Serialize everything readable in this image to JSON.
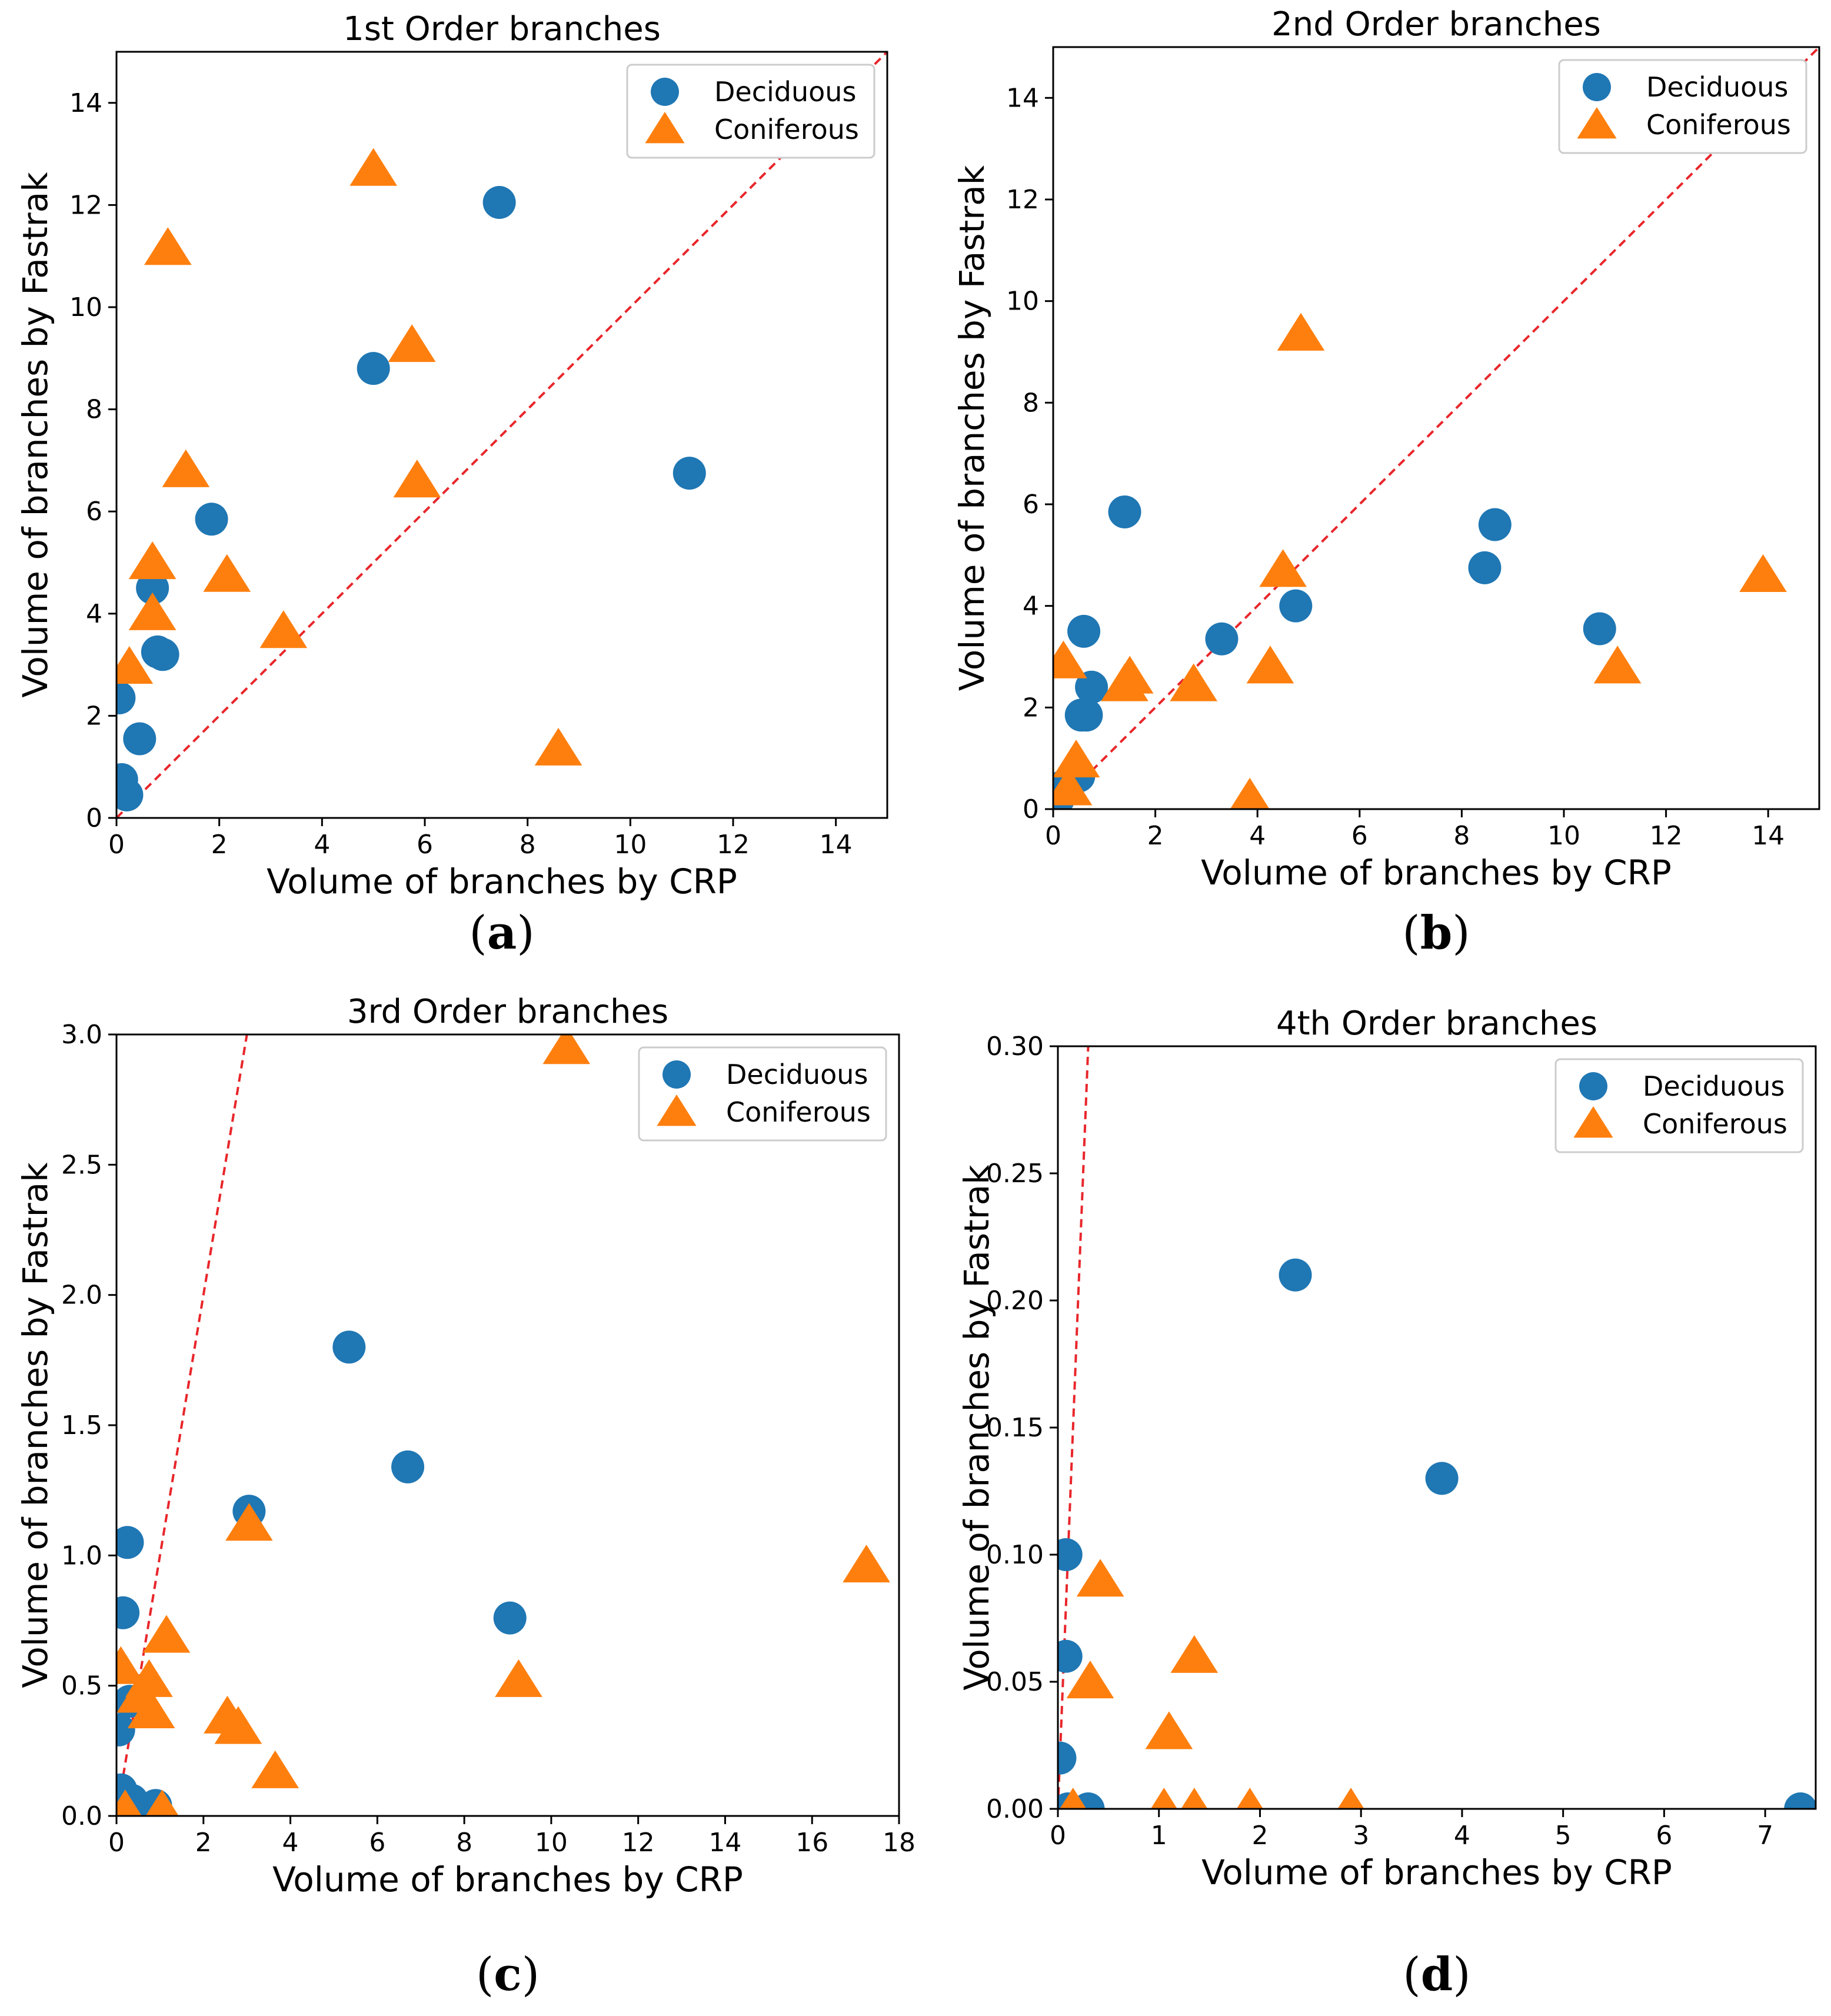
{
  "chart_data": [
    {
      "type": "scatter",
      "panel_label": "a",
      "title": "1st Order branches",
      "xlabel": "Volume of branches by CRP",
      "ylabel": "Volume of branches by Fastrak",
      "xlim": [
        0,
        15
      ],
      "ylim": [
        0,
        15
      ],
      "xticks": [
        0,
        2,
        4,
        6,
        8,
        10,
        12,
        14
      ],
      "yticks": [
        0,
        2,
        4,
        6,
        8,
        10,
        12,
        14
      ],
      "xtick_labels": [
        "0",
        "2",
        "4",
        "6",
        "8",
        "10",
        "12",
        "14"
      ],
      "ytick_labels": [
        "0",
        "2",
        "4",
        "6",
        "8",
        "10",
        "12",
        "14"
      ],
      "reference_line": {
        "slope": 1,
        "label": "y = x",
        "color": "#e8262b"
      },
      "legend_position": "top-right",
      "series": [
        {
          "name": "Deciduous",
          "marker": "circle",
          "color": "#1f77b4",
          "points": [
            [
              0.05,
              2.35
            ],
            [
              0.1,
              0.75
            ],
            [
              0.2,
              0.45
            ],
            [
              0.45,
              1.55
            ],
            [
              0.7,
              4.5
            ],
            [
              0.8,
              3.25
            ],
            [
              0.9,
              3.2
            ],
            [
              1.85,
              5.85
            ],
            [
              5.0,
              8.8
            ],
            [
              7.45,
              12.05
            ],
            [
              11.15,
              6.75
            ]
          ]
        },
        {
          "name": "Coniferous",
          "marker": "triangle",
          "color": "#ff7f0e",
          "points": [
            [
              0.25,
              2.95
            ],
            [
              0.7,
              5.0
            ],
            [
              0.7,
              4.0
            ],
            [
              1.0,
              11.15
            ],
            [
              1.35,
              6.8
            ],
            [
              2.15,
              4.75
            ],
            [
              3.25,
              3.65
            ],
            [
              5.0,
              12.7
            ],
            [
              5.75,
              9.25
            ],
            [
              5.85,
              6.6
            ],
            [
              8.6,
              1.35
            ]
          ]
        }
      ]
    },
    {
      "type": "scatter",
      "panel_label": "b",
      "title": "2nd Order branches",
      "xlabel": "Volume of branches by CRP",
      "ylabel": "Volume of branches by Fastrak",
      "xlim": [
        0,
        15
      ],
      "ylim": [
        0,
        15
      ],
      "xticks": [
        0,
        2,
        4,
        6,
        8,
        10,
        12,
        14
      ],
      "yticks": [
        0,
        2,
        4,
        6,
        8,
        10,
        12,
        14
      ],
      "xtick_labels": [
        "0",
        "2",
        "4",
        "6",
        "8",
        "10",
        "12",
        "14"
      ],
      "ytick_labels": [
        "0",
        "2",
        "4",
        "6",
        "8",
        "10",
        "12",
        "14"
      ],
      "reference_line": {
        "slope": 1,
        "label": "y = x",
        "color": "#e8262b"
      },
      "legend_position": "top-right",
      "series": [
        {
          "name": "Deciduous",
          "marker": "circle",
          "color": "#1f77b4",
          "points": [
            [
              0.1,
              0.2
            ],
            [
              0.2,
              0.45
            ],
            [
              0.5,
              0.65
            ],
            [
              0.55,
              1.85
            ],
            [
              0.65,
              1.85
            ],
            [
              0.6,
              3.5
            ],
            [
              0.75,
              2.4
            ],
            [
              1.4,
              5.85
            ],
            [
              3.3,
              3.35
            ],
            [
              4.75,
              4.0
            ],
            [
              8.45,
              4.75
            ],
            [
              8.65,
              5.6
            ],
            [
              10.7,
              3.55
            ]
          ]
        },
        {
          "name": "Coniferous",
          "marker": "triangle",
          "color": "#ff7f0e",
          "points": [
            [
              0.2,
              2.9
            ],
            [
              0.3,
              0.4
            ],
            [
              0.45,
              0.95
            ],
            [
              1.4,
              2.45
            ],
            [
              1.5,
              2.6
            ],
            [
              2.75,
              2.45
            ],
            [
              3.85,
              0.2
            ],
            [
              4.25,
              2.8
            ],
            [
              4.5,
              4.7
            ],
            [
              4.85,
              9.35
            ],
            [
              11.05,
              2.8
            ],
            [
              13.9,
              4.6
            ]
          ]
        }
      ]
    },
    {
      "type": "scatter",
      "panel_label": "c",
      "title": "3rd Order branches",
      "xlabel": "Volume of branches by CRP",
      "ylabel": "Volume of branches by Fastrak",
      "xlim": [
        0,
        18
      ],
      "ylim": [
        0,
        3.0
      ],
      "xticks": [
        0,
        2,
        4,
        6,
        8,
        10,
        12,
        14,
        16,
        18
      ],
      "yticks": [
        0,
        0.5,
        1.0,
        1.5,
        2.0,
        2.5,
        3.0
      ],
      "xtick_labels": [
        "0",
        "2",
        "4",
        "6",
        "8",
        "10",
        "12",
        "14",
        "16",
        "18"
      ],
      "ytick_labels": [
        "0.0",
        "0.5",
        "1.0",
        "1.5",
        "2.0",
        "2.5",
        "3.0"
      ],
      "reference_line": {
        "slope": 1,
        "label": "y = x",
        "color": "#e8262b"
      },
      "legend_position": "top-right",
      "series": [
        {
          "name": "Deciduous",
          "marker": "circle",
          "color": "#1f77b4",
          "points": [
            [
              0.05,
              0.33
            ],
            [
              0.1,
              0.1
            ],
            [
              0.15,
              0.78
            ],
            [
              0.25,
              1.05
            ],
            [
              0.3,
              0.44
            ],
            [
              0.35,
              0.06
            ],
            [
              0.5,
              0.02
            ],
            [
              0.9,
              0.04
            ],
            [
              5.35,
              1.8
            ],
            [
              6.7,
              1.34
            ],
            [
              3.05,
              1.17
            ],
            [
              9.05,
              0.76
            ]
          ]
        },
        {
          "name": "Coniferous",
          "marker": "triangle",
          "color": "#ff7f0e",
          "points": [
            [
              0.1,
              0.57
            ],
            [
              0.2,
              0.02
            ],
            [
              0.55,
              0.46
            ],
            [
              0.75,
              0.52
            ],
            [
              0.8,
              0.4
            ],
            [
              1.15,
              0.69
            ],
            [
              1.05,
              0.02
            ],
            [
              2.55,
              0.38
            ],
            [
              2.8,
              0.34
            ],
            [
              3.05,
              1.12
            ],
            [
              3.65,
              0.17
            ],
            [
              9.25,
              0.52
            ],
            [
              10.35,
              2.95
            ],
            [
              17.25,
              0.96
            ]
          ]
        }
      ]
    },
    {
      "type": "scatter",
      "panel_label": "d",
      "title": "4th Order branches",
      "xlabel": "Volume of branches by CRP",
      "ylabel": "Volume of branches by Fastrak",
      "xlim": [
        0,
        7.5
      ],
      "ylim": [
        0,
        0.3
      ],
      "xticks": [
        0,
        1,
        2,
        3,
        4,
        5,
        6,
        7
      ],
      "yticks": [
        0,
        0.05,
        0.1,
        0.15,
        0.2,
        0.25,
        0.3
      ],
      "xtick_labels": [
        "0",
        "1",
        "2",
        "3",
        "4",
        "5",
        "6",
        "7"
      ],
      "ytick_labels": [
        "0.00",
        "0.05",
        "0.10",
        "0.15",
        "0.20",
        "0.25",
        "0.30"
      ],
      "reference_line": {
        "slope": 1,
        "label": "y = x",
        "color": "#e8262b"
      },
      "legend_position": "top-right",
      "series": [
        {
          "name": "Deciduous",
          "marker": "circle",
          "color": "#1f77b4",
          "points": [
            [
              0.02,
              0.02
            ],
            [
              0.08,
              0.06
            ],
            [
              0.08,
              0.1
            ],
            [
              0.1,
              0.0
            ],
            [
              0.3,
              0.0
            ],
            [
              2.35,
              0.21
            ],
            [
              3.8,
              0.13
            ],
            [
              7.35,
              0.0
            ]
          ]
        },
        {
          "name": "Coniferous",
          "marker": "triangle",
          "color": "#ff7f0e",
          "points": [
            [
              0.15,
              0.0
            ],
            [
              0.32,
              0.05
            ],
            [
              0.42,
              0.09
            ],
            [
              1.05,
              0.0
            ],
            [
              1.1,
              0.03
            ],
            [
              1.35,
              0.06
            ],
            [
              1.35,
              0.0
            ],
            [
              1.9,
              0.0
            ],
            [
              2.9,
              0.0
            ]
          ]
        }
      ]
    }
  ]
}
